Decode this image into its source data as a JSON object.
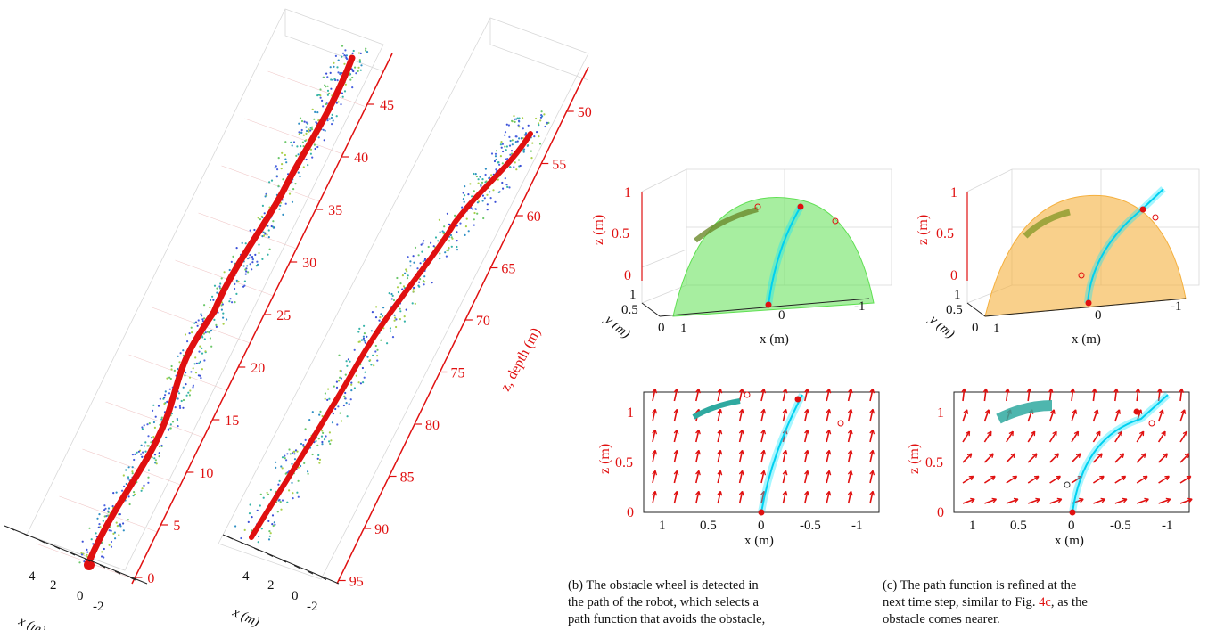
{
  "colors": {
    "accent": "#e01010",
    "path": "#e01010",
    "cyan": "#00e5ff",
    "green_dome": "#5fe052",
    "orange_dome": "#f5b03e",
    "points_blue": "#3a4fd6",
    "points_teal": "#2fa9a0"
  },
  "chart_data": [
    {
      "type": "scatter",
      "panel": "3d-left",
      "zlabel": "",
      "xlabel": "x (m)",
      "z_ticks": [
        "0",
        "5",
        "10",
        "15",
        "20",
        "25",
        "30",
        "35",
        "40",
        "45"
      ],
      "x_ticks": [
        "4",
        "2",
        "0",
        "-2"
      ],
      "series": [
        {
          "points": "point cloud"
        },
        {
          "path": "robot path"
        }
      ]
    },
    {
      "type": "scatter",
      "panel": "3d-middle",
      "zlabel": "z, depth (m)",
      "xlabel": "x (m)",
      "z_ticks": [
        "50",
        "55",
        "60",
        "65",
        "70",
        "75",
        "80",
        "85",
        "90",
        "95"
      ],
      "x_ticks": [
        "4",
        "2",
        "0",
        "-2"
      ]
    },
    {
      "type": "scatter",
      "panel": "b-top",
      "zlabel": "z (m)",
      "ylabel": "y (m)",
      "xlabel": "x (m)",
      "z_ticks": [
        "0",
        "0.5",
        "1"
      ],
      "y_ticks": [
        "0",
        "0.5",
        "1"
      ],
      "x_ticks": [
        "1",
        "0",
        "-1"
      ]
    },
    {
      "type": "scatter",
      "panel": "c-top",
      "zlabel": "z (m)",
      "ylabel": "y (m)",
      "xlabel": "x (m)",
      "z_ticks": [
        "0",
        "0.5",
        "1"
      ],
      "y_ticks": [
        "0",
        "0.5",
        "1"
      ],
      "x_ticks": [
        "1",
        "0",
        "-1"
      ]
    },
    {
      "type": "scatter",
      "panel": "b-bottom",
      "ylabel": "z (m)",
      "xlabel": "x (m)",
      "y_ticks": [
        "0",
        "0.5",
        "1"
      ],
      "x_ticks": [
        "1",
        "0.5",
        "0",
        "-0.5",
        "-1"
      ],
      "xlim": [
        1.2,
        -1.2
      ],
      "ylim": [
        0,
        1.2
      ]
    },
    {
      "type": "scatter",
      "panel": "c-bottom",
      "ylabel": "z (m)",
      "xlabel": "x (m)",
      "y_ticks": [
        "0",
        "0.5",
        "1"
      ],
      "x_ticks": [
        "1",
        "0.5",
        "0",
        "-0.5",
        "-1"
      ],
      "xlim": [
        1.2,
        -1.2
      ],
      "ylim": [
        0,
        1.2
      ]
    }
  ],
  "captions": {
    "b_line1": "(b) The obstacle wheel is detected in",
    "b_line2": "the path of the robot, which selects a",
    "b_line3": "path function that avoids the obstacle,",
    "c_line1": "(c) The path function is refined at the",
    "c_line2_pre": "next time step, similar to Fig. ",
    "c_ref": "4c",
    "c_line2_post": ", as the",
    "c_line3": "obstacle comes nearer."
  }
}
